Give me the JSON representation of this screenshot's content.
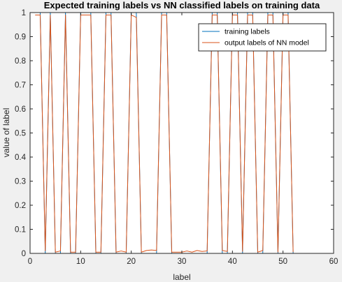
{
  "chart_data": {
    "type": "line",
    "title": "Expected training labels vs NN classified labels on training data",
    "xlabel": "label",
    "ylabel": "value of label",
    "xlim": [
      0,
      60
    ],
    "ylim": [
      0,
      1
    ],
    "xticks": [
      0,
      10,
      20,
      30,
      40,
      50,
      60
    ],
    "yticks": [
      0,
      0.1,
      0.2,
      0.3,
      0.4,
      0.5,
      0.6,
      0.7,
      0.8,
      0.9,
      1
    ],
    "xtick_labels": [
      "0",
      "10",
      "20",
      "30",
      "40",
      "50",
      "60"
    ],
    "ytick_labels": [
      "0",
      "0.1",
      "0.2",
      "0.3",
      "0.4",
      "0.5",
      "0.6",
      "0.7",
      "0.8",
      "0.9",
      "1"
    ],
    "grid": false,
    "legend_position": "top-right",
    "x": [
      1,
      2,
      3,
      4,
      5,
      6,
      7,
      8,
      9,
      10,
      11,
      12,
      13,
      14,
      15,
      16,
      17,
      18,
      19,
      20,
      21,
      22,
      23,
      24,
      25,
      26,
      27,
      28,
      29,
      30,
      31,
      32,
      33,
      34,
      35,
      36,
      37,
      38,
      39,
      40,
      41,
      42,
      43,
      44,
      45,
      46,
      47,
      48,
      49,
      50,
      51,
      52
    ],
    "series": [
      {
        "name": "training labels",
        "color": "#0072bd",
        "values": [
          1,
          1,
          0,
          1,
          0,
          0,
          1,
          0,
          0,
          1,
          1,
          1,
          0,
          0,
          1,
          1,
          0,
          0,
          0,
          1,
          1,
          0,
          0,
          0,
          0,
          1,
          1,
          0,
          0,
          0,
          0,
          0,
          0,
          0,
          0,
          1,
          1,
          0,
          0,
          1,
          1,
          0,
          1,
          1,
          0,
          0,
          1,
          1,
          0,
          1,
          1,
          0
        ]
      },
      {
        "name": "output labels of NN model",
        "color": "#d95319",
        "values": [
          0.99,
          0.99,
          0.01,
          0.99,
          0.005,
          0.01,
          0.99,
          0.005,
          0.005,
          0.99,
          0.99,
          0.99,
          0.005,
          0.005,
          0.99,
          0.99,
          0.005,
          0.01,
          0.005,
          0.99,
          0.98,
          0.005,
          0.012,
          0.014,
          0.012,
          0.99,
          0.99,
          0.005,
          0.005,
          0.005,
          0.01,
          0.005,
          0.012,
          0.008,
          0.01,
          0.99,
          0.99,
          0.012,
          0.008,
          0.99,
          0.99,
          0.008,
          0.99,
          0.99,
          0.005,
          0.012,
          0.99,
          0.99,
          0.005,
          0.99,
          0.99,
          0.005
        ]
      }
    ]
  }
}
